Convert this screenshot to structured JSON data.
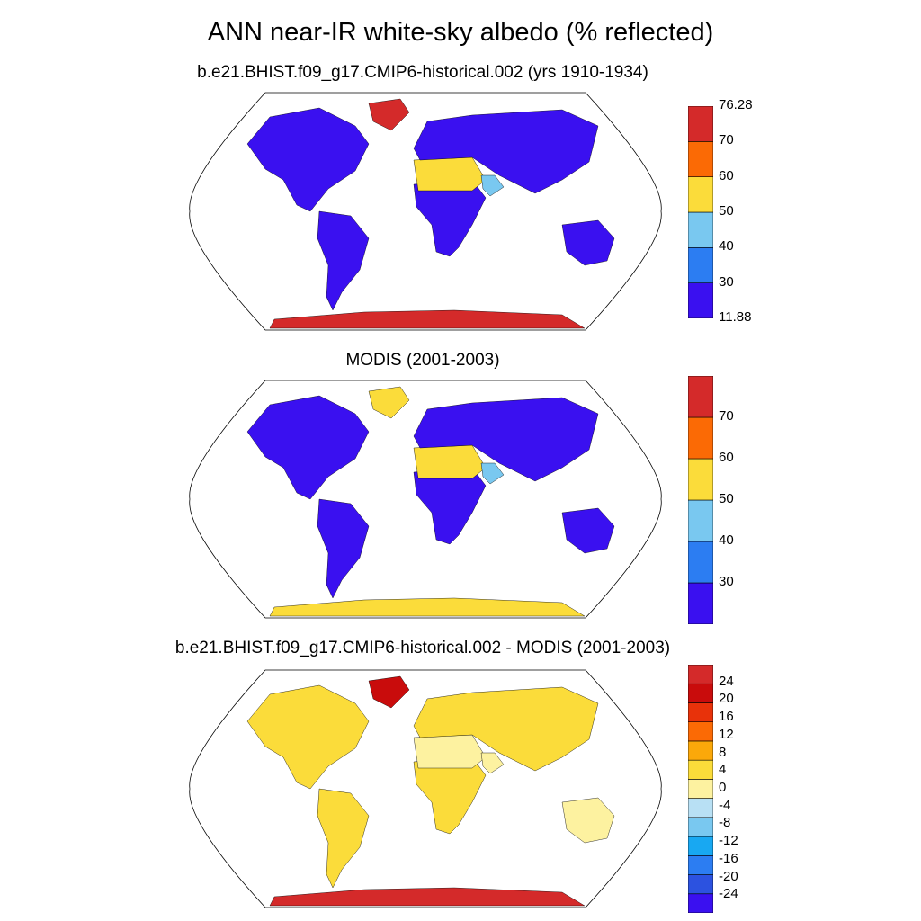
{
  "figure": {
    "title": "ANN near-IR white-sky albedo (% reflected)"
  },
  "panels": [
    {
      "subtitle": "b.e21.BHIST.f09_g17.CMIP6-historical.002 (yrs 1910-1934)",
      "colorbar": {
        "colors": [
          "#3a10f0",
          "#2c7df2",
          "#79c8f0",
          "#fbdc3a",
          "#fb6a05",
          "#d42a2a"
        ],
        "labels": [
          "11.88",
          "30",
          "40",
          "50",
          "60",
          "70",
          "76.28"
        ]
      },
      "regions": [
        {
          "name": "North America",
          "value": 20
        },
        {
          "name": "South America",
          "value": 20
        },
        {
          "name": "Africa",
          "value": 22
        },
        {
          "name": "Sahara",
          "value": 52
        },
        {
          "name": "Arabia",
          "value": 48
        },
        {
          "name": "Eurasia",
          "value": 24
        },
        {
          "name": "Australia",
          "value": 28
        },
        {
          "name": "Greenland",
          "value": 75
        },
        {
          "name": "Antarctica",
          "value": 75
        }
      ]
    },
    {
      "subtitle": "MODIS (2001-2003)",
      "colorbar": {
        "colors": [
          "#3a10f0",
          "#2c7df2",
          "#79c8f0",
          "#fbdc3a",
          "#fb6a05",
          "#d42a2a"
        ],
        "labels": [
          "",
          "30",
          "40",
          "50",
          "60",
          "70",
          ""
        ]
      },
      "regions": [
        {
          "name": "North America",
          "value": 20
        },
        {
          "name": "South America",
          "value": 20
        },
        {
          "name": "Africa",
          "value": 20
        },
        {
          "name": "Sahara",
          "value": 52
        },
        {
          "name": "Arabia",
          "value": 48
        },
        {
          "name": "Eurasia",
          "value": 22
        },
        {
          "name": "Australia",
          "value": 22
        },
        {
          "name": "Greenland",
          "value": 55
        },
        {
          "name": "Antarctica",
          "value": 55
        }
      ]
    },
    {
      "subtitle": "b.e21.BHIST.f09_g17.CMIP6-historical.002 - MODIS (2001-2003)",
      "colorbar": {
        "colors": [
          "#3a10f0",
          "#2c52e0",
          "#2c7df2",
          "#18a8f2",
          "#79c8f0",
          "#b8e0f4",
          "#fdf2a0",
          "#fbdc3a",
          "#fba80a",
          "#fb6a05",
          "#e8320a",
          "#c90c0c",
          "#d42a2a"
        ],
        "labels": [
          "",
          "-24",
          "-20",
          "-16",
          "-12",
          "-8",
          "-4",
          "0",
          "4",
          "8",
          "12",
          "16",
          "20",
          "24",
          ""
        ]
      },
      "regions": [
        {
          "name": "North America",
          "value": 2
        },
        {
          "name": "South America",
          "value": 2
        },
        {
          "name": "Africa",
          "value": 3
        },
        {
          "name": "Sahara",
          "value": -3
        },
        {
          "name": "Arabia",
          "value": -2
        },
        {
          "name": "Eurasia",
          "value": 2
        },
        {
          "name": "Australia",
          "value": -3
        },
        {
          "name": "Greenland",
          "value": 18
        },
        {
          "name": "Antarctica",
          "value": 20
        }
      ]
    }
  ]
}
